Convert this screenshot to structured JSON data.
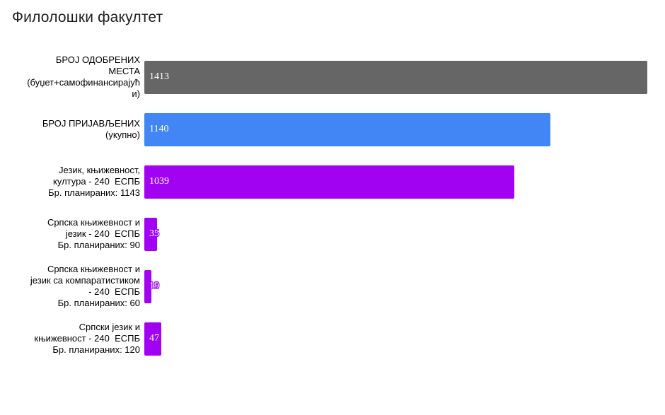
{
  "title": "Филолошки факултет",
  "colors": {
    "approved_bar": "#666666",
    "applied_bar": "#4285f4",
    "program_bar": "#a103f2",
    "title_text": "#1f1f1f",
    "category_text": "#000000",
    "value_text": "#ffffff"
  },
  "chart_data": {
    "type": "bar",
    "orientation": "horizontal",
    "title": "Филолошки факултет",
    "xlim": [
      0,
      1450
    ],
    "grid": false,
    "legend": "none",
    "value_labels": "inside-start",
    "bars": [
      {
        "label_lines": [
          "БРОЈ ОДОБРЕНИХ",
          "МЕСТА",
          "(буџет+самофинансирајућ",
          "и)"
        ],
        "category": "БРОЈ ОДОБРЕНИХ МЕСТА (буџет+самофинансирајући)",
        "value": 1413,
        "color": "#666666"
      },
      {
        "label_lines": [
          "БРОЈ ПРИЈАВЉЕНИХ",
          "(укупно)"
        ],
        "category": "БРОЈ ПРИЈАВЉЕНИХ (укупно)",
        "value": 1140,
        "color": "#4285f4"
      },
      {
        "label_lines": [
          "Језик, књижевност,",
          "култура - 240  ЕСПБ",
          "Бр. планираних: 1143"
        ],
        "category": "Језик, књижевност, култура - 240 ЕСПБ Бр. планираних: 1143",
        "value": 1039,
        "color": "#a103f2"
      },
      {
        "label_lines": [
          "Српска књижевност и",
          "језик - 240  ЕСПБ",
          "Бр. планираних: 90"
        ],
        "category": "Српска књижевност и језик - 240 ЕСПБ Бр. планираних: 90",
        "value": 35,
        "color": "#a103f2"
      },
      {
        "label_lines": [
          "Српска књижевност и",
          "језик са компаратистиком",
          "- 240  ЕСПБ",
          "Бр. планираних: 60"
        ],
        "category": "Српска књижевност и језик са компаратистиком - 240 ЕСПБ Бр. планираних: 60",
        "value": 19,
        "color": "#a103f2"
      },
      {
        "label_lines": [
          "Српски језик и",
          "књижевност - 240  ЕСПБ",
          "Бр. планираних: 120"
        ],
        "category": "Српски језик и књижевност - 240 ЕСПБ Бр. планираних: 120",
        "value": 47,
        "color": "#a103f2"
      }
    ]
  }
}
